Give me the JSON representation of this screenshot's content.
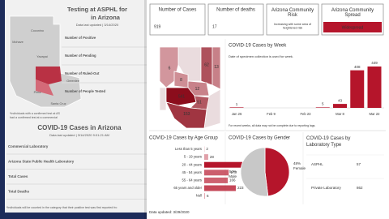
{
  "background_dashboard": {
    "title": "Testing at ASPHL for",
    "title_line2": "in Arizona",
    "updated": "Data last updated | 3/14/2020",
    "map_labels": [
      "Mohave",
      "Coconino",
      "Yavapai",
      "Pima",
      "Santa Cruz",
      "Greenlee"
    ],
    "testing_rows": [
      "Number of Positive",
      "Number of Pending",
      "Number of Ruled-Out",
      "Number of People Tested"
    ],
    "testing_note": "*Individuals with a confirmed test at AS",
    "testing_note_line2": "had a confirmed test at a commercial",
    "cases_title": "COVID-19 Cases in Arizona",
    "cases_updated": "Data last updated | 3/14/2020 9:01:21 AM",
    "cases_rows": [
      "Commercial Laboratory",
      "Arizona State Public Health Laboratory",
      "Total Cases",
      "Total Deaths"
    ],
    "cases_note": "*Individuals will be counted in the category that their positive test was first reported fro"
  },
  "cards": [
    {
      "label": "Number of Cases",
      "value": 919
    },
    {
      "label": "Number of deaths",
      "value": 17
    },
    {
      "label": "Arizona Community Risk",
      "value": "Increasing with some area of heightened risk"
    },
    {
      "label": "Arizona Community Spread",
      "value": "Widespread"
    }
  ],
  "county_map": {
    "values": [
      6,
      8,
      62,
      13,
      12,
      541,
      51,
      153
    ]
  },
  "cases_by_week": {
    "type": "bar",
    "title": "COVID-19 Cases by Week",
    "note": "Date of specimen collection is used for week.",
    "categories": [
      "Jan 26",
      null,
      "Feb 9",
      null,
      "Feb 23",
      null,
      "Mar 8",
      null,
      "Mar 22"
    ],
    "values": [
      1,
      null,
      null,
      null,
      null,
      5,
      43,
      408,
      449
    ],
    "color": "#b5152b",
    "footnote": "For recent weeks, all data may not be complete due to reporting lags."
  },
  "cases_by_age": {
    "type": "bar",
    "orientation": "horizontal",
    "title": "COVID-19 Cases by Age Group",
    "categories": [
      "Less than 5 years",
      "5 - 19 years",
      "20 - 44 years",
      "45 - 54 years",
      "55 - 64 years",
      "65 years and older",
      "Null"
    ],
    "values": [
      2,
      28,
      332,
      173,
      166,
      223,
      6
    ],
    "color": "#b5152b"
  },
  "cases_by_gender": {
    "type": "pie",
    "title": "COVID-19 Cases by Gender",
    "categories": [
      "Female",
      "Male"
    ],
    "values": [
      48,
      52
    ],
    "value_labels": [
      "48%",
      "52%"
    ],
    "colors": [
      "#b5152b",
      "#c8c8c8"
    ]
  },
  "cases_by_lab": {
    "title": "COVID-19 Cases by Laboratory Type",
    "rows": [
      [
        "ASPHL",
        57
      ],
      [
        "Private Laboratory",
        862
      ]
    ]
  },
  "data_updated": "Data updated:  3/29/2020"
}
